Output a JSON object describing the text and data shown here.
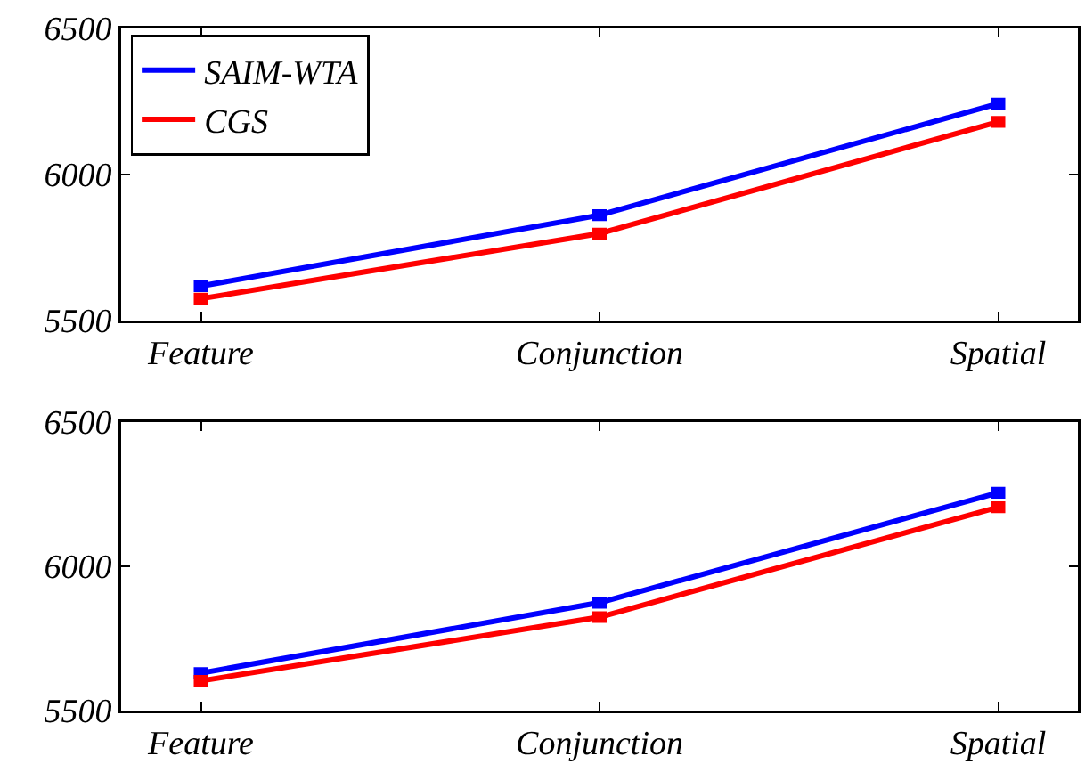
{
  "chart_data": [
    {
      "type": "line",
      "categories": [
        "Feature",
        "Conjunction",
        "Spatial"
      ],
      "series": [
        {
          "name": "SAIM-WTA",
          "color": "#0000ff",
          "values": [
            5618,
            5861,
            6243
          ],
          "errors": [
            8,
            8,
            8
          ]
        },
        {
          "name": "CGS",
          "color": "#ff0000",
          "values": [
            5575,
            5798,
            6180
          ],
          "errors": [
            8,
            8,
            8
          ]
        }
      ],
      "ylim": [
        5500,
        6500
      ],
      "yticks": [
        5500,
        6000,
        6500
      ],
      "legend": "top left",
      "line_style": "solid"
    },
    {
      "type": "line",
      "categories": [
        "Feature",
        "Conjunction",
        "Spatial"
      ],
      "series": [
        {
          "color": "#0000ff",
          "values": [
            5630,
            5874,
            6255
          ],
          "errors": [
            8,
            8,
            8
          ]
        },
        {
          "color": "#ff0000",
          "values": [
            5603,
            5824,
            6205
          ],
          "errors": [
            8,
            8,
            8
          ]
        }
      ],
      "ylim": [
        5500,
        6500
      ],
      "yticks": [
        5500,
        6000,
        6500
      ],
      "line_style": "solid"
    }
  ]
}
